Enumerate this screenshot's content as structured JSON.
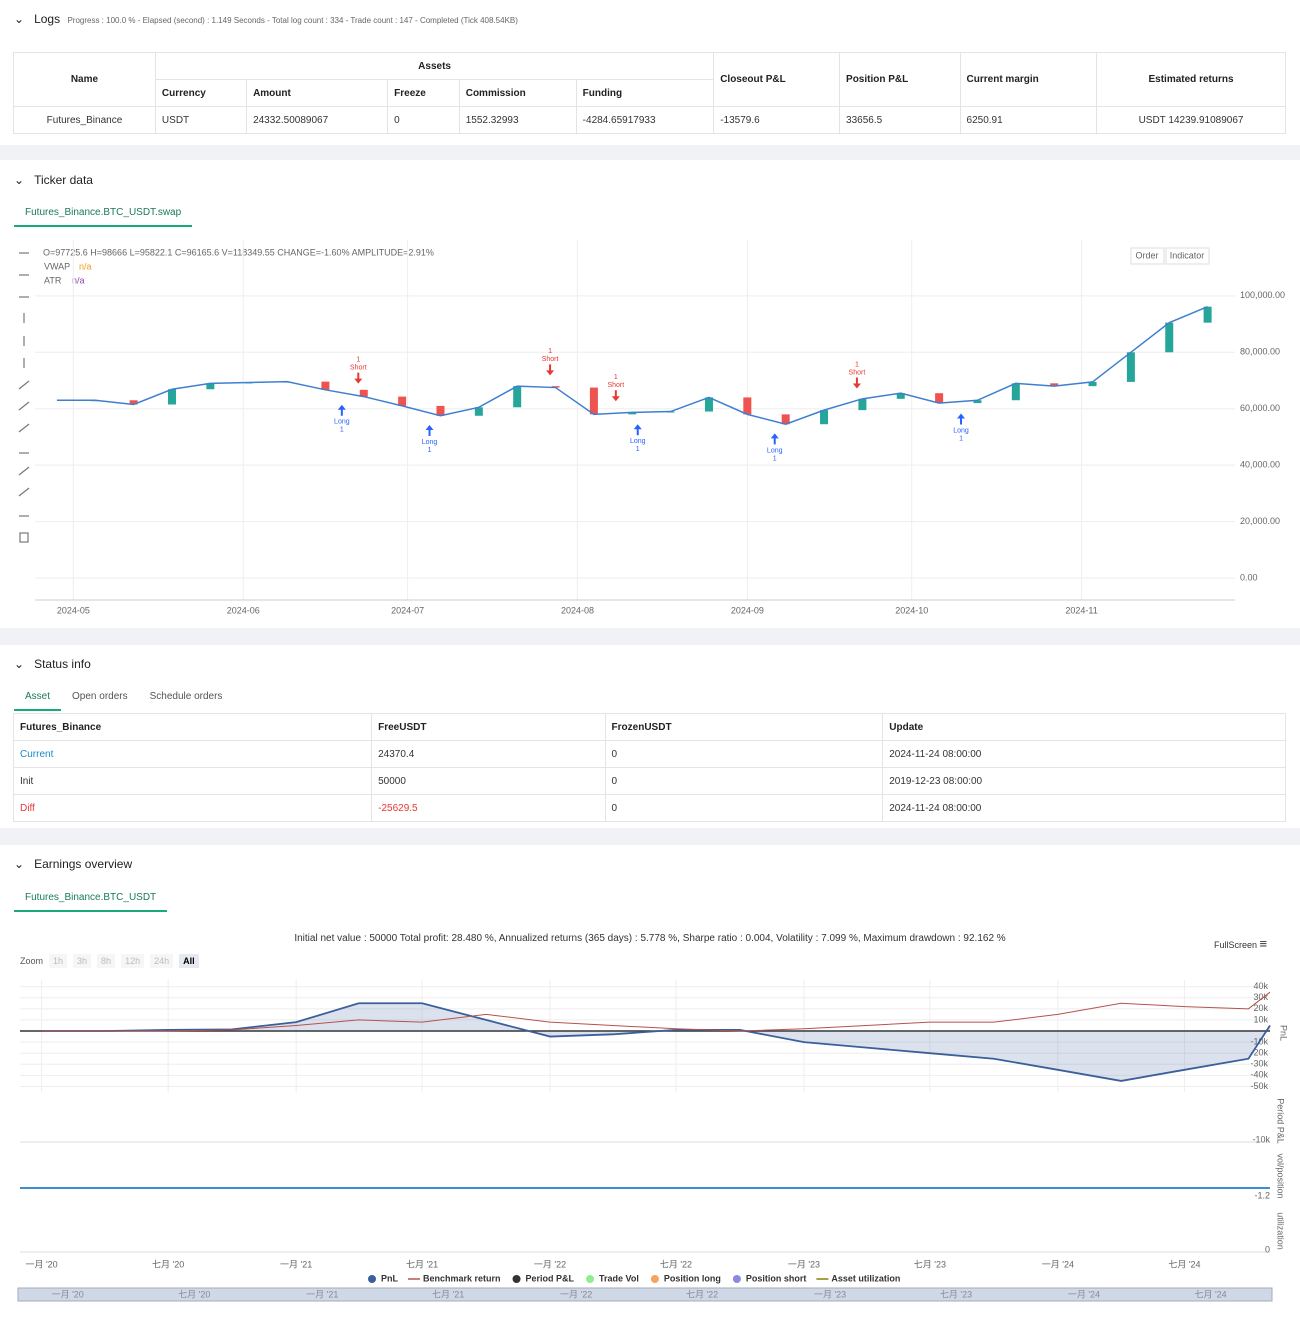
{
  "logs": {
    "title": "Logs",
    "progress": "Progress : 100.0 % - Elapsed (second) : 1.149 Seconds - Total log count : 334 - Trade count : 147 - Completed (Tick 408.54KB)"
  },
  "assets_table": {
    "name": "Name",
    "assets": "Assets",
    "asset_columns": [
      "Currency",
      "Amount",
      "Freeze",
      "Commission",
      "Funding"
    ],
    "other_columns": [
      "Closeout P&L",
      "Position P&L",
      "Current margin",
      "Estimated returns"
    ],
    "row": [
      "Futures_Binance",
      "USDT",
      "24332.50089067",
      "0",
      "1552.32993",
      "-4284.65917933",
      "-13579.6",
      "33656.5",
      "6250.91",
      "USDT 14239.91089067"
    ]
  },
  "ticker": {
    "title": "Ticker data",
    "tab": "Futures_Binance.BTC_USDT.swap",
    "ohlc": "O=97725.6 H=98666 L=95822.1 C=96165.6 V=118349.55 CHANGE=-1.60% AMPLITUDE=2.91%",
    "legend": [
      {
        "name": "VWAP",
        "value": "n/a"
      },
      {
        "name": "ATR",
        "value": "n/a"
      }
    ],
    "buttons": [
      "Order",
      "Indicator"
    ],
    "signals": [
      {
        "x": "2024-06-19",
        "side": "Long",
        "qty": "1"
      },
      {
        "x": "2024-06-22",
        "side": "Short",
        "qty": "1"
      },
      {
        "x": "2024-07-05",
        "side": "Long",
        "qty": "1"
      },
      {
        "x": "2024-07-27",
        "side": "Short",
        "qty": "1"
      },
      {
        "x": "2024-08-08",
        "side": "Short",
        "qty": "1"
      },
      {
        "x": "2024-08-12",
        "side": "Long",
        "qty": "1"
      },
      {
        "x": "2024-09-06",
        "side": "Long",
        "qty": "1"
      },
      {
        "x": "2024-09-21",
        "side": "Short",
        "qty": "1"
      },
      {
        "x": "2024-10-10",
        "side": "Long",
        "qty": "1"
      }
    ]
  },
  "chart_data": [
    {
      "type": "line",
      "x": [
        "2024-04-28",
        "2024-05-05",
        "2024-05-12",
        "2024-05-19",
        "2024-05-26",
        "2024-06-02",
        "2024-06-09",
        "2024-06-16",
        "2024-06-23",
        "2024-06-30",
        "2024-07-07",
        "2024-07-14",
        "2024-07-21",
        "2024-07-28",
        "2024-08-04",
        "2024-08-11",
        "2024-08-18",
        "2024-08-25",
        "2024-09-01",
        "2024-09-08",
        "2024-09-15",
        "2024-09-22",
        "2024-09-29",
        "2024-10-06",
        "2024-10-13",
        "2024-10-20",
        "2024-10-27",
        "2024-11-03",
        "2024-11-10",
        "2024-11-17",
        "2024-11-24"
      ],
      "values": [
        63000,
        63000,
        61500,
        66900,
        69000,
        69300,
        69600,
        66700,
        64300,
        61000,
        57500,
        60500,
        68000,
        67500,
        58000,
        58700,
        59000,
        64000,
        58000,
        54500,
        59500,
        63500,
        65500,
        62000,
        63000,
        69000,
        68000,
        69500,
        80000,
        90500,
        96165.6
      ],
      "color": "#26a69a",
      "up_color": "#26a69a",
      "down_color": "#ef5350",
      "grid": true,
      "xlim": [
        "2024-04-24",
        "2024-11-29"
      ],
      "xticks": [
        "2024-05",
        "2024-06",
        "2024-07",
        "2024-08",
        "2024-09",
        "2024-10",
        "2024-11"
      ],
      "ylim": [
        -7800,
        119800
      ],
      "yticks": [
        {
          "value": 0,
          "label": "0.00"
        },
        {
          "value": 20000,
          "label": "20,000.00"
        },
        {
          "value": 40000,
          "label": "40,000.00"
        },
        {
          "value": 60000,
          "label": "60,000.00"
        },
        {
          "value": 80000,
          "label": "80,000.00"
        },
        {
          "value": 100000,
          "label": "100,000.00"
        }
      ]
    },
    {
      "type": "line",
      "x": [
        "2020-01",
        "2020-04",
        "2020-07",
        "2020-10",
        "2021-01",
        "2021-04",
        "2021-07",
        "2021-10",
        "2022-01",
        "2022-04",
        "2022-07",
        "2022-10",
        "2023-01",
        "2023-04",
        "2023-07",
        "2023-10",
        "2024-01",
        "2024-04",
        "2024-07",
        "2024-10",
        "2024-11"
      ],
      "series": [
        {
          "name": "PnL",
          "color": "#3b5f9a",
          "values": [
            0,
            0,
            1000,
            1500,
            8000,
            25000,
            25000,
            10000,
            -5000,
            -3000,
            1000,
            1000,
            -10000,
            -15000,
            -20000,
            -25000,
            -35000,
            -45000,
            -35000,
            -25000,
            5000
          ]
        },
        {
          "name": "Benchmark return",
          "color": "#b5524f",
          "values": [
            0,
            0,
            0,
            1000,
            5000,
            10000,
            8000,
            15000,
            8000,
            5000,
            2000,
            0,
            2000,
            5000,
            8000,
            8000,
            15000,
            25000,
            22000,
            20000,
            35000
          ]
        }
      ],
      "ylabel": "PnL",
      "grid": true,
      "xlim": [
        "2019-12",
        "2024-11"
      ],
      "xticks": [
        {
          "value": "2020-01",
          "label": "一月 '20"
        },
        {
          "value": "2020-07",
          "label": "七月 '20"
        },
        {
          "value": "2021-01",
          "label": "一月 '21"
        },
        {
          "value": "2021-07",
          "label": "七月 '21"
        },
        {
          "value": "2022-01",
          "label": "一月 '22"
        },
        {
          "value": "2022-07",
          "label": "七月 '22"
        },
        {
          "value": "2023-01",
          "label": "一月 '23"
        },
        {
          "value": "2023-07",
          "label": "七月 '23"
        },
        {
          "value": "2024-01",
          "label": "一月 '24"
        },
        {
          "value": "2024-07",
          "label": "七月 '24"
        }
      ],
      "ylim": [
        -55000,
        46000
      ],
      "yticks": [
        {
          "value": 40000,
          "label": "40k"
        },
        {
          "value": 30000,
          "label": "30k"
        },
        {
          "value": 20000,
          "label": "20k"
        },
        {
          "value": 10000,
          "label": "10k"
        },
        {
          "value": -10000,
          "label": "-10k"
        },
        {
          "value": -20000,
          "label": "-20k"
        },
        {
          "value": -30000,
          "label": "-30k"
        },
        {
          "value": -40000,
          "label": "-40k"
        },
        {
          "value": -50000,
          "label": "-50k"
        }
      ],
      "legend_extra": [
        {
          "name": "Period P&L",
          "color": "#333333"
        },
        {
          "name": "Trade Vol",
          "color": "#90ee90"
        },
        {
          "name": "Position long",
          "color": "#f4a460"
        },
        {
          "name": "Position short",
          "color": "#8a8ae0"
        },
        {
          "name": "Asset utilization",
          "color": "#8b8000"
        }
      ]
    }
  ],
  "status": {
    "title": "Status info",
    "tabs": [
      "Asset",
      "Open orders",
      "Schedule orders"
    ],
    "headers": [
      "Futures_Binance",
      "FreeUSDT",
      "FrozenUSDT",
      "Update"
    ],
    "rows": [
      [
        "Current",
        "24370.4",
        "0",
        "2024-11-24 08:00:00"
      ],
      [
        "Init",
        "50000",
        "0",
        "2019-12-23 08:00:00"
      ],
      [
        "Diff",
        "-25629.5",
        "0",
        "2024-11-24 08:00:00"
      ]
    ]
  },
  "earnings": {
    "title": "Earnings overview",
    "tab": "Futures_Binance.BTC_USDT",
    "stats": "Initial net value : 50000 Total profit: 28.480 %, Annualized returns (365 days) : 5.778 %, Sharpe ratio : 0.004, Volatility : 7.099 %, Maximum drawdown : 92.162 %",
    "fullscreen": "FullScreen",
    "zoom": "Zoom",
    "zoom_buttons": [
      "1h",
      "3h",
      "8h",
      "12h",
      "24h",
      "All"
    ],
    "panels": [
      {
        "title": "Period P&L",
        "tick": "-10k"
      },
      {
        "title": "vol/position",
        "tick": "-1.2"
      },
      {
        "title": "utilization",
        "tick": "0"
      }
    ]
  }
}
